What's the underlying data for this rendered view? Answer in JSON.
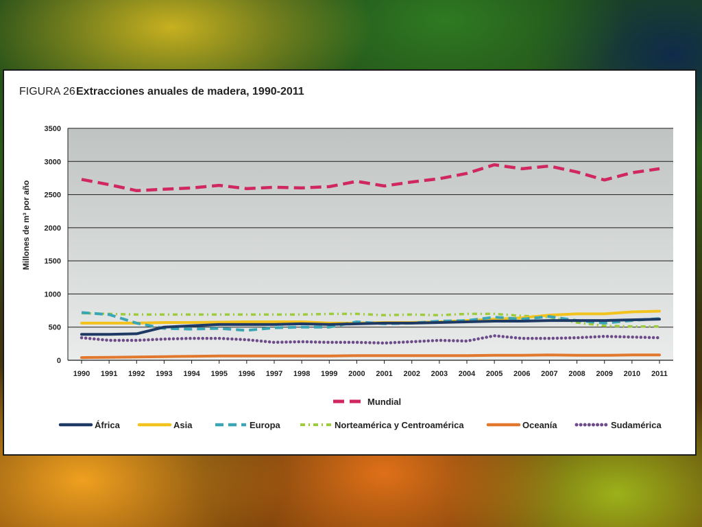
{
  "chart_data": {
    "type": "line",
    "figure_label": "FIGURA 26",
    "title": "Extracciones anuales de madera, 1990-2011",
    "xlabel": "",
    "ylabel": "Millones de m³ por año",
    "ylim": [
      0,
      3500
    ],
    "yticks": [
      "0",
      "500",
      "1000",
      "1500",
      "2000",
      "2500",
      "3000",
      "3500"
    ],
    "ytick_values": [
      0,
      500,
      1000,
      1500,
      2000,
      2500,
      3000,
      3500
    ],
    "grid": true,
    "legend_position": "bottom",
    "categories": [
      "1990",
      "1991",
      "1992",
      "1993",
      "1994",
      "1995",
      "1996",
      "1997",
      "1998",
      "1999",
      "2000",
      "2001",
      "2002",
      "2003",
      "2004",
      "2005",
      "2006",
      "2007",
      "2008",
      "2009",
      "2010",
      "2011"
    ],
    "series": [
      {
        "name": "Mundial",
        "color": "#d0275f",
        "dash": "dash-long",
        "values": [
          2730,
          2650,
          2560,
          2580,
          2600,
          2640,
          2590,
          2610,
          2600,
          2620,
          2700,
          2630,
          2690,
          2740,
          2820,
          2950,
          2890,
          2930,
          2840,
          2720,
          2830,
          2890
        ]
      },
      {
        "name": "África",
        "color": "#1e3a64",
        "dash": "solid",
        "values": [
          390,
          390,
          400,
          500,
          520,
          540,
          540,
          540,
          550,
          540,
          550,
          560,
          560,
          570,
          580,
          590,
          590,
          600,
          600,
          600,
          610,
          620
        ]
      },
      {
        "name": "Asia",
        "color": "#f2c21d",
        "dash": "solid",
        "values": [
          560,
          560,
          560,
          570,
          570,
          575,
          580,
          580,
          580,
          560,
          560,
          570,
          570,
          580,
          600,
          620,
          640,
          680,
          700,
          700,
          730,
          740
        ]
      },
      {
        "name": "Europa",
        "color": "#3aa6b5",
        "dash": "dash",
        "values": [
          720,
          690,
          560,
          480,
          470,
          480,
          450,
          490,
          500,
          500,
          580,
          550,
          560,
          590,
          600,
          650,
          620,
          660,
          600,
          560,
          600,
          630
        ]
      },
      {
        "name": "Norteamérica y Centroamérica",
        "color": "#9ccb3b",
        "dash": "dashdot",
        "values": [
          710,
          700,
          690,
          690,
          690,
          690,
          690,
          690,
          690,
          700,
          700,
          680,
          690,
          680,
          700,
          700,
          670,
          650,
          570,
          520,
          510,
          510
        ]
      },
      {
        "name": "Oceanía",
        "color": "#e2782d",
        "dash": "solid",
        "values": [
          40,
          45,
          50,
          55,
          60,
          65,
          65,
          65,
          65,
          65,
          70,
          70,
          70,
          70,
          70,
          75,
          75,
          80,
          75,
          75,
          80,
          80
        ]
      },
      {
        "name": "Sudamérica",
        "color": "#6e4c8a",
        "dash": "dot",
        "values": [
          340,
          300,
          300,
          320,
          330,
          330,
          310,
          270,
          280,
          270,
          270,
          260,
          280,
          300,
          290,
          370,
          330,
          330,
          340,
          360,
          350,
          340
        ]
      }
    ]
  }
}
